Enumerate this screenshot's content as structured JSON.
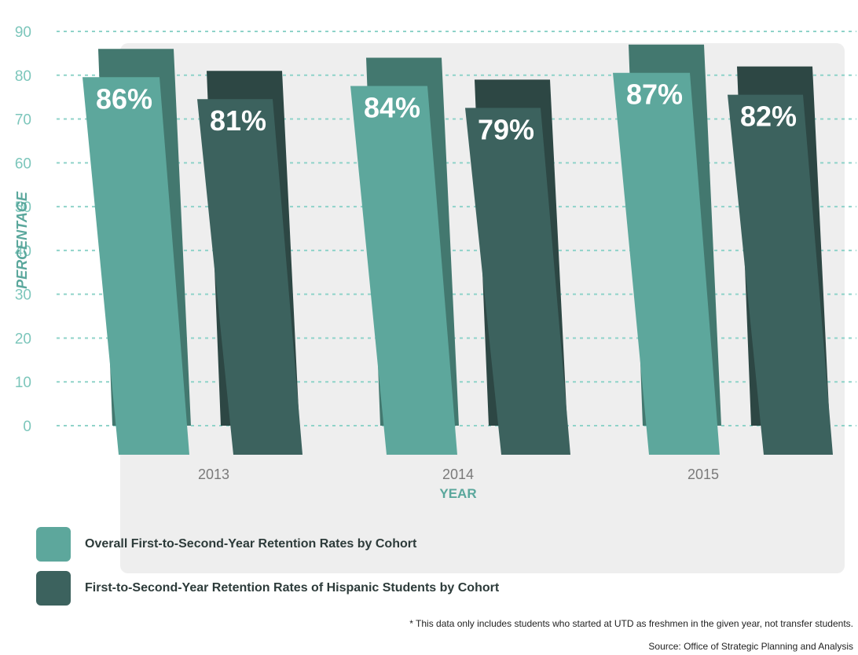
{
  "chart_data": {
    "type": "bar",
    "categories": [
      "2013",
      "2014",
      "2015"
    ],
    "series": [
      {
        "name": "Overall First-to-Second-Year Retention Rates by Cohort",
        "values": [
          86,
          84,
          87
        ],
        "labels": [
          "86%",
          "84%",
          "87%"
        ],
        "color": "#5da79c",
        "shadow_color": "#43786f"
      },
      {
        "name": "First-to-Second-Year Retention Rates of Hispanic Students by Cohort",
        "values": [
          81,
          79,
          82
        ],
        "labels": [
          "81%",
          "79%",
          "82%"
        ],
        "color": "#3c625e",
        "shadow_color": "#2d4744"
      }
    ],
    "ylabel": "PERCENTAGE",
    "xlabel": "YEAR",
    "ylim": [
      0,
      90
    ],
    "yticks": [
      "0",
      "10",
      "20",
      "30",
      "40",
      "50",
      "60",
      "70",
      "80",
      "90"
    ],
    "grid": true,
    "legend": "bottom-left"
  },
  "footnote": "* This data only includes students who started at UTD as freshmen in the given year, not transfer students.",
  "source": "Source: Office of Strategic Planning and Analysis",
  "colors": {
    "panel": "#eeeeee",
    "gridline": "#8fd3c9"
  }
}
